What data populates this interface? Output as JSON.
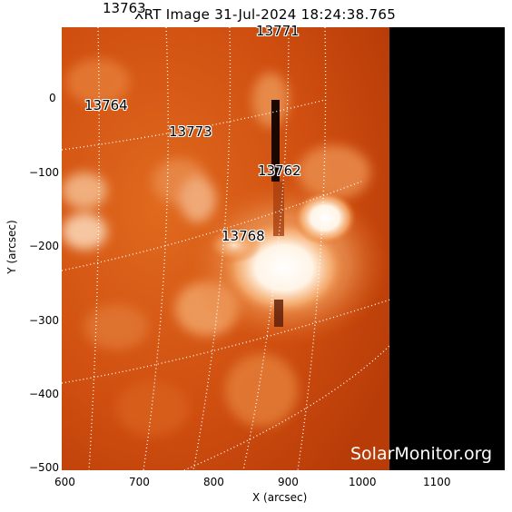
{
  "title": "XRT Image 31-Jul-2024 18:24:38.765",
  "xlabel": "X (arcsec)",
  "ylabel": "Y (arcsec)",
  "x_ticks": [
    "600",
    "700",
    "800",
    "900",
    "1000",
    "1100"
  ],
  "y_ticks": [
    "0",
    "−100",
    "−200",
    "−300",
    "−400",
    "−500"
  ],
  "regions": [
    "13763",
    "13771",
    "13764",
    "13773",
    "13762",
    "13768"
  ],
  "watermark": "SolarMonitor.org",
  "colors": {
    "disk": "#d2500f",
    "bright": "#ffffff",
    "off_limb": "#000000"
  }
}
